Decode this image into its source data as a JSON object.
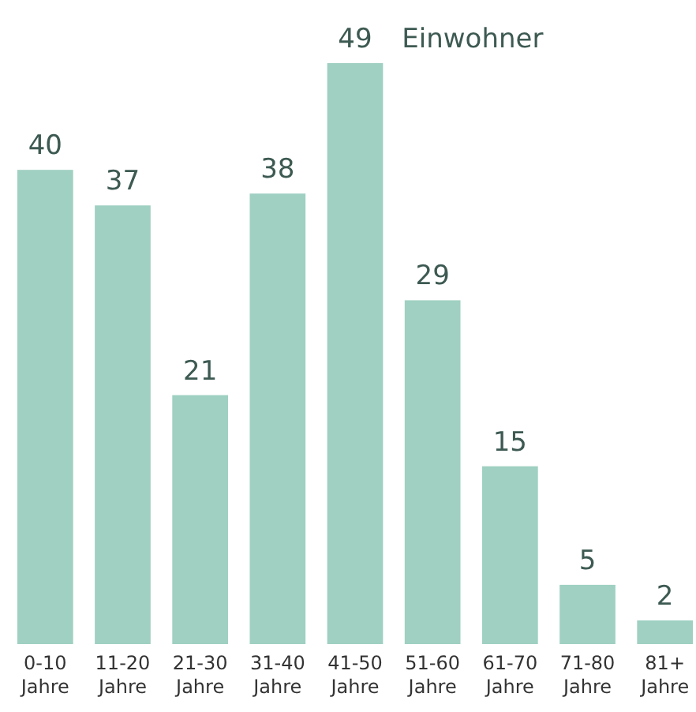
{
  "chart_data": {
    "type": "bar",
    "relative": false,
    "categories": [
      "0-10 Jahre",
      "11-20 Jahre",
      "21-30 Jahre",
      "31-40 Jahre",
      "41-50 Jahre",
      "51-60 Jahre",
      "61-70 Jahre",
      "71-80 Jahre",
      "81+ Jahre"
    ],
    "values": [
      40,
      37,
      21,
      38,
      49,
      29,
      15,
      5,
      2
    ],
    "color": "#9fd0c2",
    "data_labels": true,
    "annotations": [
      "Einwohner"
    ]
  }
}
